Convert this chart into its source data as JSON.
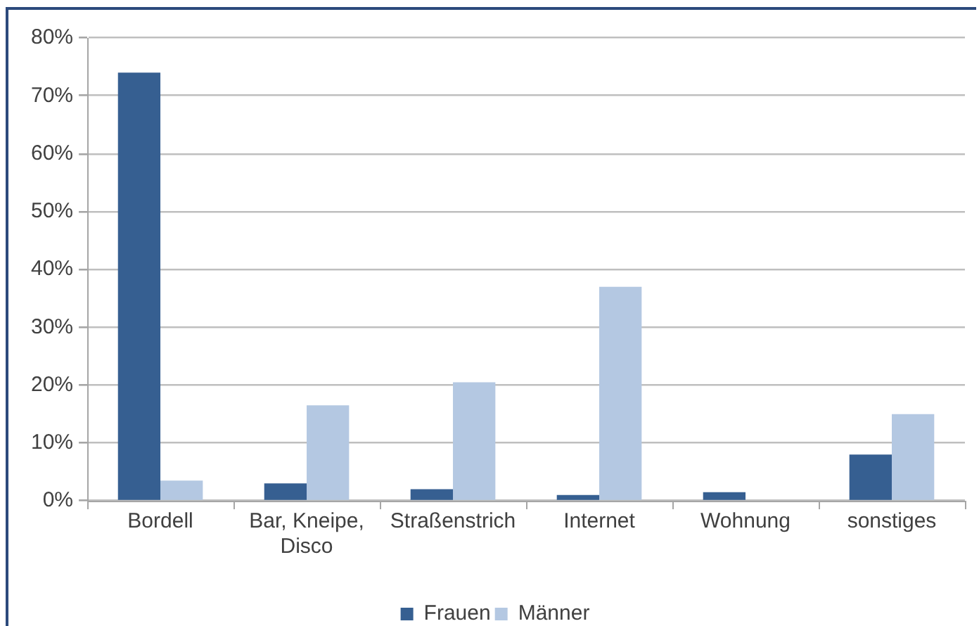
{
  "chart_data": {
    "type": "bar",
    "categories": [
      "Bordell",
      "Bar, Kneipe, Disco",
      "Straßenstrich",
      "Internet",
      "Wohnung",
      "sonstiges"
    ],
    "series": [
      {
        "name": "Frauen",
        "color": "#365f91",
        "values": [
          74,
          3,
          2,
          1,
          1.5,
          8
        ]
      },
      {
        "name": "Männer",
        "color": "#b4c8e2",
        "values": [
          3.5,
          16.5,
          20.5,
          37,
          0,
          15
        ]
      }
    ],
    "ylim": [
      0,
      80
    ],
    "yticks": [
      {
        "value": 0,
        "label": "0%"
      },
      {
        "value": 10,
        "label": "10%"
      },
      {
        "value": 20,
        "label": "20%"
      },
      {
        "value": 30,
        "label": "30%"
      },
      {
        "value": 40,
        "label": "40%"
      },
      {
        "value": 50,
        "label": "50%"
      },
      {
        "value": 60,
        "label": "60%"
      },
      {
        "value": 70,
        "label": "70%"
      },
      {
        "value": 80,
        "label": "80%"
      }
    ],
    "grid": "y",
    "legend": "bottom"
  }
}
